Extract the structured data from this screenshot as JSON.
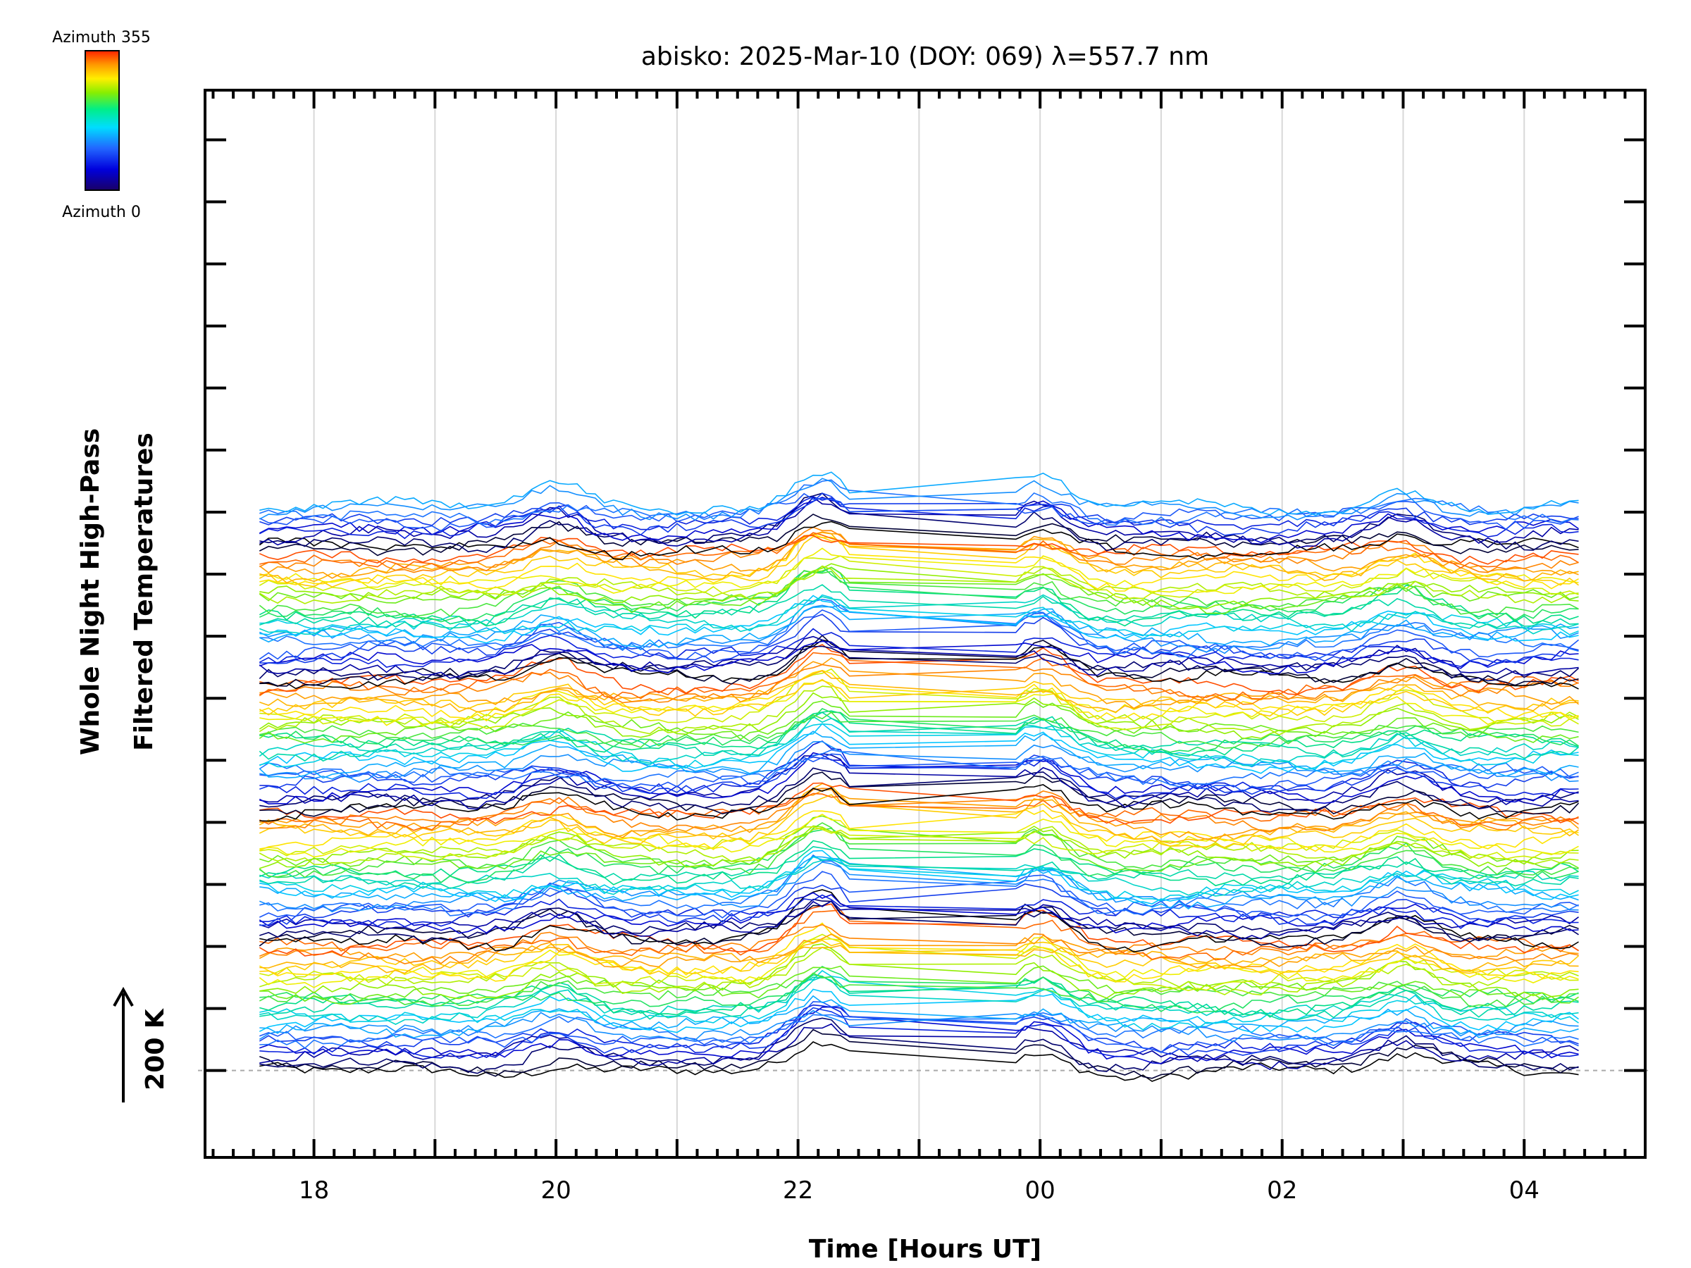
{
  "chart_data": {
    "type": "line",
    "title": "abisko: 2025-Mar-10 (DOY: 069) λ=557.7 nm",
    "xlabel": "Time [Hours UT]",
    "ylabel_lines": [
      "Whole Night High-Pass",
      "Filtered Temperatures"
    ],
    "scale_label": "200 K",
    "scale_value_K": 200,
    "colorbar": {
      "top_label": "Azimuth 355",
      "bottom_label": "Azimuth 0",
      "min": 0,
      "max": 355,
      "colors": [
        "#000000",
        "#0000cc",
        "#2266ff",
        "#00ccff",
        "#00dd88",
        "#88ee00",
        "#ffee00",
        "#ff9900",
        "#ff3300"
      ]
    },
    "x_ticks": [
      "18",
      "20",
      "22",
      "00",
      "02",
      "04"
    ],
    "x_tick_hours": [
      18,
      20,
      22,
      24,
      26,
      28
    ],
    "xlim": [
      17.1,
      29.0
    ],
    "data_start_hour": 17.55,
    "data_end_hour": 28.5,
    "gap_hours": [
      22.45,
      23.8
    ],
    "ylim_K": [
      -140,
      1580
    ],
    "y_major_tick_spacing_K": 100,
    "trace_offset_K": 7,
    "trace_count": 131,
    "baseline_K": 0,
    "features": [
      {
        "time_hour": 20.0,
        "amplitude_K": 25
      },
      {
        "time_hour": 22.2,
        "amplitude_K": 55
      },
      {
        "time_hour": 24.0,
        "amplitude_K": 40
      },
      {
        "time_hour": 27.0,
        "amplitude_K": 25
      }
    ]
  }
}
